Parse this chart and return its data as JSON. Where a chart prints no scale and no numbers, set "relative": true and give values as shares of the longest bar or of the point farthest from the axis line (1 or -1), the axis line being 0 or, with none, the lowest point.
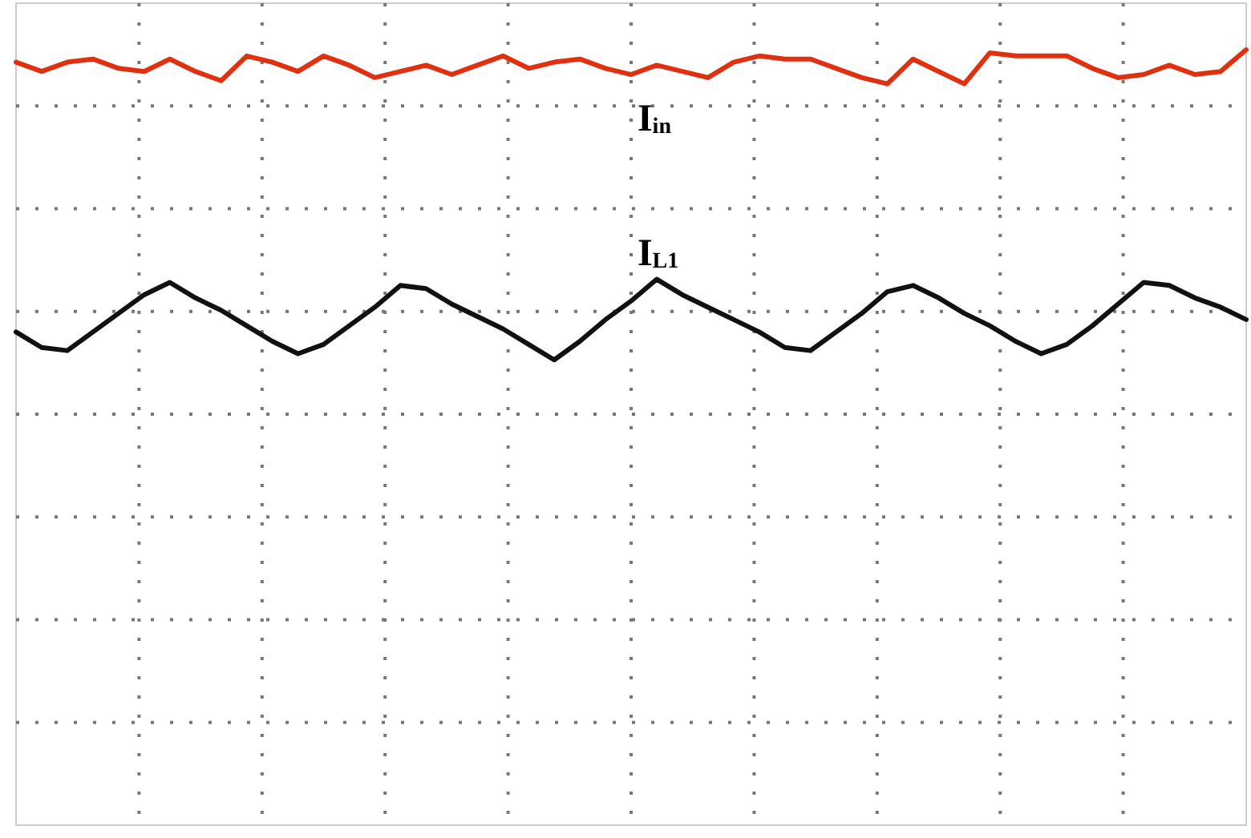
{
  "chart_data": {
    "type": "line",
    "relative": true,
    "grid": true,
    "legend": false,
    "marker": "none",
    "line_style": "solid",
    "categories": [
      null,
      null,
      null,
      null,
      null,
      null,
      null,
      null,
      null,
      null,
      null,
      null,
      null,
      null,
      null,
      null,
      null,
      null,
      null,
      null,
      null,
      null,
      null,
      null,
      null,
      null,
      null,
      null,
      null,
      null,
      null,
      null,
      null,
      null,
      null,
      null,
      null,
      null,
      null,
      null,
      null,
      null,
      null,
      null,
      null,
      null,
      null,
      null,
      null
    ],
    "series": [
      {
        "name": "I$_{in}$",
        "color": "#e0300f",
        "values": [
          0.984,
          0.972,
          0.984,
          0.988,
          0.976,
          0.972,
          0.988,
          0.972,
          0.96,
          0.992,
          0.984,
          0.972,
          0.992,
          0.98,
          0.964,
          0.972,
          0.98,
          0.968,
          0.98,
          0.992,
          0.976,
          0.984,
          0.988,
          0.976,
          0.968,
          0.98,
          0.972,
          0.964,
          0.984,
          0.992,
          0.988,
          0.988,
          0.976,
          0.964,
          0.956,
          0.988,
          0.972,
          0.956,
          0.996,
          0.992,
          0.992,
          0.992,
          0.976,
          0.964,
          0.968,
          0.98,
          0.968,
          0.972,
          1
        ]
      },
      {
        "name": "I$_{L1}$",
        "color": "#111111",
        "values": [
          0.636,
          0.616,
          0.612,
          0.636,
          0.66,
          0.684,
          0.7,
          0.68,
          0.664,
          0.644,
          0.624,
          0.608,
          0.62,
          0.644,
          0.668,
          0.696,
          0.692,
          0.672,
          0.656,
          0.64,
          0.62,
          0.6,
          0.624,
          0.652,
          0.676,
          0.704,
          0.684,
          0.668,
          0.652,
          0.636,
          0.616,
          0.612,
          0.636,
          0.66,
          0.688,
          0.696,
          0.68,
          0.66,
          0.644,
          0.624,
          0.608,
          0.62,
          0.644,
          0.672,
          0.7,
          0.696,
          0.68,
          0.668,
          0.652
        ]
      }
    ]
  }
}
